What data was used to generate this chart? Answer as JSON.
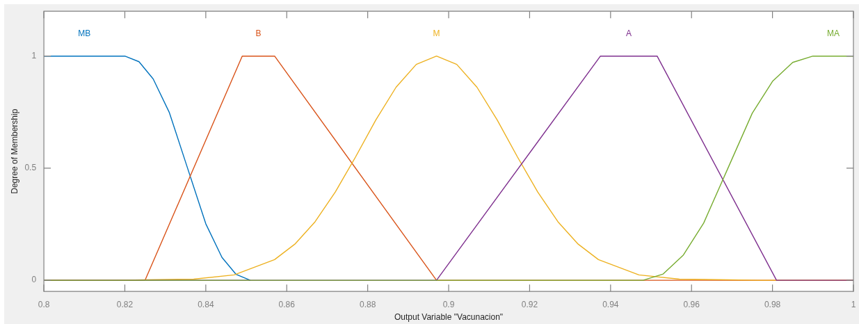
{
  "chart_data": {
    "type": "line",
    "xlabel": "Output Variable \"Vacunacion\"",
    "ylabel": "Degree of Membership",
    "xlim": [
      0.8,
      1
    ],
    "ylim": [
      -0.05,
      1.2
    ],
    "xticks": [
      0.8,
      0.82,
      0.84,
      0.86,
      0.88,
      0.9,
      0.92,
      0.94,
      0.96,
      0.98,
      1
    ],
    "yticks": [
      0,
      0.5,
      1
    ],
    "grid": false,
    "legend": false,
    "series": [
      {
        "name": "MB",
        "color": "#0072bd",
        "x": [
          0.8,
          0.82,
          0.8235,
          0.827,
          0.831,
          0.8355,
          0.84,
          0.844,
          0.8475,
          0.851
        ],
        "values": [
          1,
          1,
          0.975,
          0.898,
          0.748,
          0.5,
          0.252,
          0.102,
          0.026,
          0
        ]
      },
      {
        "name": "B",
        "color": "#d95319",
        "x": [
          0.8,
          0.825,
          0.849,
          0.857,
          0.897,
          1
        ],
        "values": [
          0,
          0,
          1,
          1,
          0,
          0
        ]
      },
      {
        "name": "M",
        "color": "#edb120",
        "x": [
          0.8,
          0.817,
          0.837,
          0.847,
          0.857,
          0.862,
          0.867,
          0.872,
          0.877,
          0.882,
          0.887,
          0.892,
          0.897,
          0.902,
          0.907,
          0.912,
          0.917,
          0.922,
          0.927,
          0.932,
          0.937,
          0.947,
          0.957,
          0.977,
          1
        ],
        "values": [
          0,
          0,
          0.005,
          0.024,
          0.092,
          0.161,
          0.261,
          0.394,
          0.55,
          0.715,
          0.861,
          0.963,
          1,
          0.963,
          0.861,
          0.715,
          0.55,
          0.394,
          0.261,
          0.161,
          0.092,
          0.024,
          0.005,
          0,
          0
        ]
      },
      {
        "name": "A",
        "color": "#7e2f8e",
        "x": [
          0.8,
          0.897,
          0.9375,
          0.9515,
          0.981,
          1
        ],
        "values": [
          0,
          0,
          1,
          1,
          0,
          0
        ]
      },
      {
        "name": "MA",
        "color": "#77ac30",
        "x": [
          0.8,
          0.948,
          0.953,
          0.958,
          0.963,
          0.969,
          0.975,
          0.98,
          0.985,
          0.99,
          1
        ],
        "values": [
          0,
          0,
          0.028,
          0.113,
          0.255,
          0.5,
          0.745,
          0.887,
          0.972,
          1,
          1
        ]
      }
    ]
  }
}
